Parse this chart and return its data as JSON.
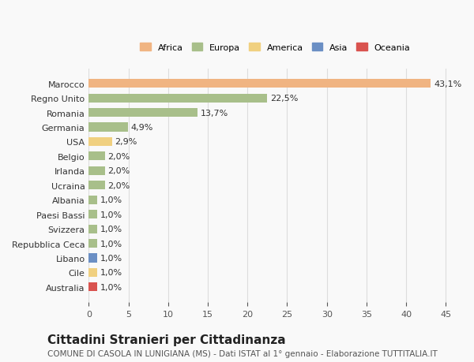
{
  "countries": [
    "Marocco",
    "Regno Unito",
    "Romania",
    "Germania",
    "USA",
    "Belgio",
    "Irlanda",
    "Ucraina",
    "Albania",
    "Paesi Bassi",
    "Svizzera",
    "Repubblica Ceca",
    "Libano",
    "Cile",
    "Australia"
  ],
  "values": [
    43.1,
    22.5,
    13.7,
    4.9,
    2.9,
    2.0,
    2.0,
    2.0,
    1.0,
    1.0,
    1.0,
    1.0,
    1.0,
    1.0,
    1.0
  ],
  "labels": [
    "43,1%",
    "22,5%",
    "13,7%",
    "4,9%",
    "2,9%",
    "2,0%",
    "2,0%",
    "2,0%",
    "1,0%",
    "1,0%",
    "1,0%",
    "1,0%",
    "1,0%",
    "1,0%",
    "1,0%"
  ],
  "continents": [
    "Africa",
    "Europa",
    "Europa",
    "Europa",
    "America",
    "Europa",
    "Europa",
    "Europa",
    "Europa",
    "Europa",
    "Europa",
    "Europa",
    "Asia",
    "America",
    "Oceania"
  ],
  "continent_colors": {
    "Africa": "#F0B482",
    "Europa": "#A8BF8A",
    "America": "#F0D080",
    "Asia": "#6B8FC4",
    "Oceania": "#D9534F"
  },
  "legend_order": [
    "Africa",
    "Europa",
    "America",
    "Asia",
    "Oceania"
  ],
  "title": "Cittadini Stranieri per Cittadinanza",
  "subtitle": "COMUNE DI CASOLA IN LUNIGIANA (MS) - Dati ISTAT al 1° gennaio - Elaborazione TUTTITALIA.IT",
  "xlim": [
    0,
    47
  ],
  "xticks": [
    0,
    5,
    10,
    15,
    20,
    25,
    30,
    35,
    40,
    45
  ],
  "background_color": "#f9f9f9",
  "grid_color": "#dddddd",
  "bar_height": 0.6,
  "label_fontsize": 8,
  "tick_fontsize": 8,
  "title_fontsize": 11,
  "subtitle_fontsize": 7.5
}
